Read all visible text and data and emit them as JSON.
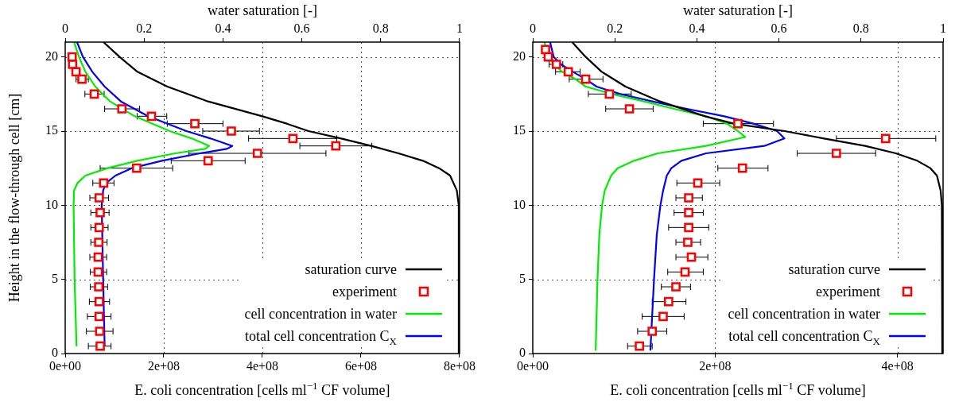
{
  "chart_data": [
    {
      "type": "line",
      "xlabel": "E. coli concentration [cells ml$^{−1}$ CF volume]",
      "ylabel": "Height in the flow-through cell [cm]",
      "x2label": "water saturation [-]",
      "xlim": [
        0,
        800000000.0
      ],
      "xticks": [
        {
          "value": 0,
          "label": "0e+00"
        },
        {
          "value": 200000000.0,
          "label": "2e+08"
        },
        {
          "value": 400000000.0,
          "label": "4e+08"
        },
        {
          "value": 600000000.0,
          "label": "6e+08"
        },
        {
          "value": 800000000.0,
          "label": "8e+08"
        }
      ],
      "x2lim": [
        0,
        1
      ],
      "x2ticks": [
        0,
        0.2,
        0.4,
        0.6,
        0.8,
        1
      ],
      "ylim": [
        0,
        21
      ],
      "yticks": [
        0,
        5,
        10,
        15,
        20
      ],
      "grid": true,
      "legend": "bottom right",
      "series": [
        {
          "name": "saturation curve",
          "type": "line",
          "axis": "x2",
          "color": "#000000",
          "x": [
            0.097,
            0.138,
            0.183,
            0.259,
            0.362,
            0.5,
            0.562,
            0.617,
            0.7,
            0.776,
            0.845,
            0.907,
            0.948,
            0.976,
            0.993,
            0.998,
            0.998
          ],
          "values": [
            21,
            20,
            19,
            18,
            17,
            16,
            15.5,
            15,
            14.5,
            14,
            13.5,
            13,
            12.5,
            12,
            11,
            10,
            0
          ]
        },
        {
          "name": "experiment",
          "type": "scatter",
          "marker": "square",
          "color": "#ff0000",
          "x": [
            14000000.0,
            15000000.0,
            22000000.0,
            34000000.0,
            59000000.0,
            115000000.0,
            175000000.0,
            263000000.0,
            337000000.0,
            462000000.0,
            549000000.0,
            390000000.0,
            290000000.0,
            145000000.0,
            78000000.0,
            69000000.0,
            71000000.0,
            69000000.0,
            68000000.0,
            67000000.0,
            67000000.0,
            68000000.0,
            69000000.0,
            69000000.0,
            70000000.0,
            71000000.0
          ],
          "values": [
            20,
            19.5,
            19,
            18.5,
            17.5,
            16.5,
            16,
            15.5,
            15,
            14.5,
            14,
            13.5,
            13,
            12.5,
            11.5,
            10.5,
            9.5,
            8.5,
            7.5,
            6.5,
            5.5,
            4.5,
            3.5,
            2.5,
            1.5,
            0.5
          ],
          "xerrors": [
            null,
            null,
            null,
            [
              22000000.0,
              47000000.0
            ],
            [
              40000000.0,
              79000000.0
            ],
            [
              80000000.0,
              151000000.0
            ],
            [
              146000000.0,
              206000000.0
            ],
            [
              207000000.0,
              320000000.0
            ],
            [
              279000000.0,
              394000000.0
            ],
            [
              372000000.0,
              551000000.0
            ],
            [
              476000000.0,
              622000000.0
            ],
            [
              251000000.0,
              529000000.0
            ],
            [
              215000000.0,
              365000000.0
            ],
            [
              71000000.0,
              218000000.0
            ],
            [
              56000000.0,
              99000000.0
            ],
            [
              50000000.0,
              88000000.0
            ],
            [
              52000000.0,
              89000000.0
            ],
            [
              52000000.0,
              87000000.0
            ],
            [
              52000000.0,
              85000000.0
            ],
            [
              50000000.0,
              84000000.0
            ],
            [
              51000000.0,
              84000000.0
            ],
            [
              51000000.0,
              86000000.0
            ],
            [
              49000000.0,
              90000000.0
            ],
            [
              45000000.0,
              93000000.0
            ],
            [
              43000000.0,
              97000000.0
            ],
            [
              47000000.0,
              93000000.0
            ]
          ]
        },
        {
          "name": "cell concentration in water",
          "type": "line",
          "color": "#00ee00",
          "x": [
            18000000.0,
            28000000.0,
            41000000.0,
            61000000.0,
            91000000.0,
            141000000.0,
            212000000.0,
            257000000.0,
            292000000.0,
            284000000.0,
            223000000.0,
            146000000.0,
            86000000.0,
            41000000.0,
            25000000.0,
            18000000.0,
            17000000.0,
            19000000.0,
            23000000.0
          ],
          "values": [
            21,
            20,
            19,
            18,
            17,
            16,
            15,
            14.5,
            14,
            13.8,
            13.5,
            13,
            12.5,
            12,
            11.5,
            11,
            10,
            5,
            0.5
          ]
        },
        {
          "name": "total cell concentration C$_{X}$",
          "type": "line",
          "color": "#0000ff",
          "x": [
            24000000.0,
            36000000.0,
            55000000.0,
            80000000.0,
            113000000.0,
            168000000.0,
            246000000.0,
            295000000.0,
            339000000.0,
            328000000.0,
            273000000.0,
            196000000.0,
            135000000.0,
            102000000.0,
            83000000.0,
            77000000.0,
            74000000.0,
            77000000.0,
            80000000.0
          ],
          "values": [
            21,
            20,
            19,
            18,
            17,
            16,
            15,
            14.5,
            14,
            13.8,
            13.5,
            13,
            12.5,
            12,
            11.5,
            11,
            10,
            5,
            0.5
          ]
        }
      ]
    },
    {
      "type": "line",
      "xlabel": "E. coli concentration [cells ml$^{−1}$ CF volume]",
      "x2label": "water saturation [-]",
      "xlim": [
        0,
        450000000.0
      ],
      "xticks": [
        {
          "value": 0,
          "label": "0e+00"
        },
        {
          "value": 200000000.0,
          "label": "2e+08"
        },
        {
          "value": 400000000.0,
          "label": "4e+08"
        }
      ],
      "x2lim": [
        0,
        1
      ],
      "x2ticks": [
        0,
        0.2,
        0.4,
        0.6,
        0.8,
        1
      ],
      "ylim": [
        0,
        21
      ],
      "yticks": [
        0,
        5,
        10,
        15,
        20
      ],
      "grid": true,
      "legend": "bottom right",
      "series": [
        {
          "name": "saturation curve",
          "type": "line",
          "axis": "x2",
          "color": "#000000",
          "x": [
            0.096,
            0.129,
            0.168,
            0.226,
            0.31,
            0.42,
            0.49,
            0.614,
            0.71,
            0.81,
            0.885,
            0.937,
            0.969,
            0.985,
            0.994,
            0.997,
            0.998
          ],
          "values": [
            21,
            20,
            19,
            18,
            17,
            16,
            15.5,
            15,
            14.5,
            14,
            13.5,
            13,
            12.5,
            12,
            11,
            10,
            0
          ]
        },
        {
          "name": "experiment",
          "type": "scatter",
          "marker": "square",
          "color": "#ff0000",
          "x": [
            14000000.0,
            17000000.0,
            26000000.0,
            39000000.0,
            58000000.0,
            84000000.0,
            106000000.0,
            225000000.0,
            387000000.0,
            333000000.0,
            230000000.0,
            181000000.0,
            171000000.0,
            171000000.0,
            171000000.0,
            170000000.0,
            174000000.0,
            167000000.0,
            157000000.0,
            149000000.0,
            143000000.0,
            131000000.0,
            117000000.0
          ],
          "values": [
            20.5,
            20,
            19.5,
            19,
            18.5,
            17.5,
            16.5,
            15.5,
            14.5,
            13.5,
            12.5,
            11.5,
            10.5,
            9.5,
            8.5,
            7.5,
            6.5,
            5.5,
            4.5,
            3.5,
            2.5,
            1.5,
            0.5
          ],
          "xerrors": [
            null,
            null,
            [
              18000000.0,
              33000000.0
            ],
            [
              25000000.0,
              52000000.0
            ],
            [
              40000000.0,
              77000000.0
            ],
            [
              61000000.0,
              108000000.0
            ],
            [
              80000000.0,
              132000000.0
            ],
            [
              187000000.0,
              264000000.0
            ],
            [
              333000000.0,
              442000000.0
            ],
            [
              290000000.0,
              376000000.0
            ],
            [
              203000000.0,
              258000000.0
            ],
            [
              158000000.0,
              205000000.0
            ],
            [
              157000000.0,
              186000000.0
            ],
            [
              155000000.0,
              187000000.0
            ],
            [
              149000000.0,
              193000000.0
            ],
            [
              157000000.0,
              184000000.0
            ],
            [
              157000000.0,
              192000000.0
            ],
            [
              148000000.0,
              187000000.0
            ],
            [
              141000000.0,
              173000000.0
            ],
            [
              131000000.0,
              168000000.0
            ],
            [
              120000000.0,
              166000000.0
            ],
            [
              115000000.0,
              147000000.0
            ],
            [
              104000000.0,
              131000000.0
            ]
          ]
        },
        {
          "name": "cell concentration in water",
          "type": "line",
          "color": "#00ee00",
          "x": [
            13000000.0,
            16000000.0,
            32000000.0,
            47000000.0,
            58000000.0,
            87000000.0,
            122000000.0,
            155000000.0,
            190000000.0,
            213000000.0,
            225000000.0,
            233000000.0,
            190000000.0,
            137000000.0,
            111000000.0,
            93000000.0,
            86000000.0,
            79000000.0,
            76000000.0,
            73000000.0,
            71000000.0,
            69000000.0
          ],
          "values": [
            21,
            20,
            19,
            18.5,
            18,
            17.5,
            17,
            16.5,
            16,
            15.5,
            15,
            14.6,
            14,
            13.5,
            13,
            12.5,
            12,
            11,
            10,
            8,
            5,
            0.2
          ]
        },
        {
          "name": "total cell concentration C$_{X}$",
          "type": "line",
          "color": "#0000ff",
          "x": [
            19000000.0,
            23000000.0,
            31000000.0,
            44000000.0,
            58000000.0,
            70000000.0,
            96000000.0,
            131000000.0,
            169000000.0,
            210000000.0,
            242000000.0,
            268000000.0,
            276000000.0,
            254000000.0,
            190000000.0,
            163000000.0,
            152000000.0,
            147000000.0,
            143000000.0,
            140000000.0,
            136000000.0,
            133000000.0,
            129000000.0
          ],
          "values": [
            21,
            20,
            19.5,
            19,
            18.5,
            18,
            17.5,
            17,
            16.5,
            16,
            15.5,
            15,
            14.5,
            14,
            13.5,
            13,
            12.5,
            12,
            11,
            10,
            8,
            5,
            0.2
          ]
        }
      ]
    }
  ]
}
